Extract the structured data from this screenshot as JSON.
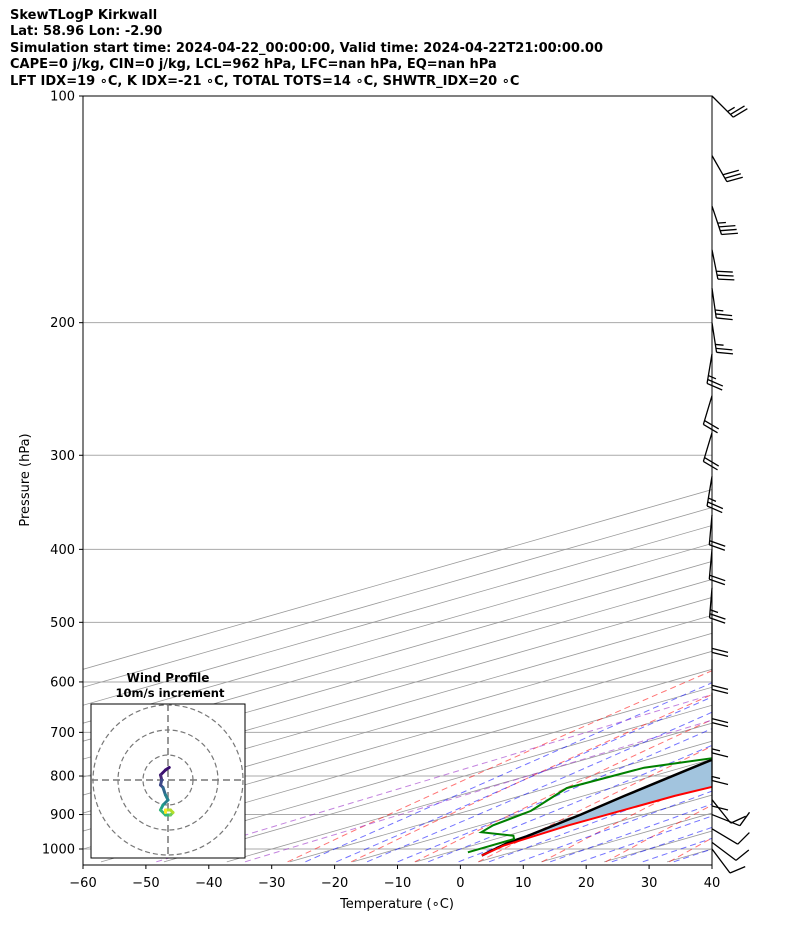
{
  "header": {
    "line1": "SkewTLogP Kirkwall",
    "line2": "Lat: 58.96   Lon: -2.90",
    "line3": "Simulation start time: 2024-04-22_00:00:00, Valid time: 2024-04-22T21:00:00.00",
    "line4": "CAPE=0 j/kg, CIN=0 j/kg, LCL=962 hPa, LFC=nan hPa, EQ=nan hPa",
    "line5": "LFT IDX=19 ∘C, K IDX=-21 ∘C, TOTAL TOTS=14 ∘C, SHWTR_IDX=20 ∘C"
  },
  "colors": {
    "temperature": "#ff0000",
    "dewpoint": "#008000",
    "parcel": "#000000",
    "cape_fill": "#a2c4de",
    "dry_adiabat": "#ff0000",
    "moist_adiabat": "#0000ff",
    "mixing_ratio": "#9b30c8",
    "isotherm": "#999999",
    "isobar": "#aaaaaa"
  },
  "chart_data": [
    {
      "type": "line",
      "subtype": "skew-T log-P diagram",
      "xlabel": "Temperature (∘C)",
      "ylabel": "Pressure (hPa)",
      "xlim": [
        -60,
        40
      ],
      "ylim": [
        1040,
        100
      ],
      "yscale": "log",
      "x_ticks": [
        "−60",
        "−50",
        "−40",
        "−30",
        "−20",
        "−10",
        "0",
        "10",
        "20",
        "30",
        "40"
      ],
      "y_ticks": [
        "100",
        "200",
        "300",
        "400",
        "500",
        "600",
        "700",
        "800",
        "900",
        "1000"
      ],
      "series": [
        {
          "key": "temperature",
          "points": [
            [
              7,
              1020
            ],
            [
              5,
              990
            ],
            [
              4,
              930
            ],
            [
              4.5,
              850
            ],
            [
              7,
              790
            ],
            [
              8.5,
              740
            ],
            [
              9,
              700
            ],
            [
              8,
              650
            ],
            [
              3,
              560
            ],
            [
              -3,
              460
            ],
            [
              -7,
              380
            ],
            [
              -11,
              330
            ],
            [
              -17,
              280
            ],
            [
              -22,
              240
            ],
            [
              -26,
              220
            ],
            [
              -25,
              210
            ],
            [
              -23,
              200
            ],
            [
              -20,
              190
            ],
            [
              -13,
              170
            ],
            [
              -6,
              150
            ],
            [
              0,
              135
            ],
            [
              5,
              120
            ],
            [
              7,
              110
            ],
            [
              8,
              100
            ]
          ]
        },
        {
          "key": "dewpoint",
          "points": [
            [
              3,
              1010
            ],
            [
              3,
              970
            ],
            [
              1,
              960
            ],
            [
              -6,
              950
            ],
            [
              -8,
              930
            ],
            [
              -10,
              890
            ],
            [
              -17,
              830
            ],
            [
              -16,
              780
            ],
            [
              -6,
              740
            ],
            [
              -4,
              690
            ],
            [
              -2,
              640
            ],
            [
              -3,
              590
            ],
            [
              -5,
              520
            ],
            [
              -7,
              450
            ],
            [
              -8,
              410
            ],
            [
              -16,
              375
            ],
            [
              -19,
              350
            ],
            [
              -17,
              320
            ],
            [
              -19,
              290
            ],
            [
              -20,
              270
            ],
            [
              -21,
              240
            ],
            [
              -21,
              230
            ],
            [
              -18,
              210
            ],
            [
              -15,
              180
            ],
            [
              -19,
              170
            ],
            [
              -23,
              160
            ],
            [
              -15,
              130
            ],
            [
              -5,
              100
            ]
          ]
        },
        {
          "key": "parcel",
          "points": [
            [
              7,
              1020
            ],
            [
              4,
              980
            ],
            [
              3.5,
              962
            ],
            [
              0,
              900
            ],
            [
              -3.5,
              850
            ],
            [
              -8.3,
              780
            ],
            [
              -12,
              730
            ],
            [
              -19,
              650
            ],
            [
              -27,
              560
            ],
            [
              -35,
              470
            ],
            [
              -41,
              410
            ],
            [
              -47,
              350
            ],
            [
              -53,
              300
            ],
            [
              -58,
              260
            ],
            [
              -63,
              225
            ],
            [
              -69,
              190
            ],
            [
              -74,
              165
            ],
            [
              -80,
              140
            ],
            [
              -86,
              120
            ],
            [
              -92,
              100
            ]
          ]
        }
      ]
    },
    {
      "type": "line",
      "subtype": "hodograph",
      "title": "Wind Profile",
      "subtitle": "10m/s increment",
      "rings_ms": [
        10,
        20,
        30
      ],
      "uv_ms": [
        [
          0.5,
          5
        ],
        [
          -1,
          4
        ],
        [
          -3,
          2
        ],
        [
          -2.5,
          0
        ],
        [
          -3,
          -2
        ],
        [
          -2,
          -3
        ],
        [
          -1,
          -6
        ],
        [
          0,
          -8
        ],
        [
          -2,
          -10
        ],
        [
          -3,
          -12
        ],
        [
          -1,
          -14
        ],
        [
          1,
          -14
        ],
        [
          2,
          -13
        ],
        [
          1,
          -12
        ],
        [
          -1,
          -12
        ],
        [
          -1,
          -13
        ]
      ]
    }
  ],
  "wind_barbs": [
    {
      "p": 100,
      "u": -10,
      "v": 10
    },
    {
      "p": 120,
      "u": -8,
      "v": 14
    },
    {
      "p": 140,
      "u": -6,
      "v": 18
    },
    {
      "p": 160,
      "u": -3,
      "v": 15
    },
    {
      "p": 180,
      "u": -2,
      "v": 14
    },
    {
      "p": 200,
      "u": -2,
      "v": 13
    },
    {
      "p": 220,
      "u": 2,
      "v": 12
    },
    {
      "p": 250,
      "u": 3,
      "v": 10
    },
    {
      "p": 280,
      "u": 3,
      "v": 10
    },
    {
      "p": 320,
      "u": 2,
      "v": 12
    },
    {
      "p": 360,
      "u": 1,
      "v": 11
    },
    {
      "p": 400,
      "u": 1,
      "v": 11
    },
    {
      "p": 450,
      "u": 1,
      "v": 12
    },
    {
      "p": 500,
      "u": 0,
      "v": 11
    },
    {
      "p": 560,
      "u": 0,
      "v": 10
    },
    {
      "p": 620,
      "u": 0,
      "v": 10
    },
    {
      "p": 680,
      "u": 0,
      "v": 9
    },
    {
      "p": 740,
      "u": 0,
      "v": 7
    },
    {
      "p": 800,
      "u": 0,
      "v": 5
    },
    {
      "p": 860,
      "u": -4,
      "v": 5
    },
    {
      "p": 900,
      "u": -5,
      "v": 2
    },
    {
      "p": 940,
      "u": -5,
      "v": 3
    },
    {
      "p": 980,
      "u": -4,
      "v": 3
    },
    {
      "p": 1000,
      "u": -3,
      "v": 4
    }
  ]
}
